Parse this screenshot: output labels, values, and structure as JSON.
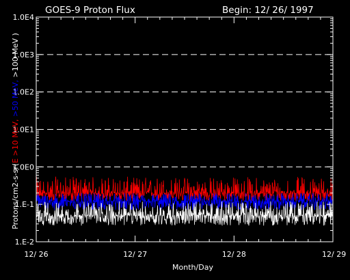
{
  "chart_data": {
    "type": "line",
    "title": "GOES-9 Proton Flux",
    "begin_label": "Begin: 12/ 26/ 1997",
    "xlabel": "Month/Day",
    "ylabel_parts": [
      {
        "text": "Protons/cm2-s-sr(",
        "color": "#ffffff"
      },
      {
        "text": "E >10 MeV, ",
        "color": "#ff0000"
      },
      {
        "text": ">50 MeV, ",
        "color": "#0000ff"
      },
      {
        "text": ">100 MeV )",
        "color": "#ffffff"
      }
    ],
    "y_scale": "log",
    "ylim": [
      0.01,
      10000
    ],
    "y_tick_labels": [
      "1.E-2",
      "1.E-1",
      "1.0E0",
      "1.0E1",
      "1.0E2",
      "1.0E3",
      "1.0E4"
    ],
    "y_tick_values": [
      0.01,
      0.1,
      1,
      10,
      100,
      1000,
      10000
    ],
    "dashed_grid_values": [
      1,
      10,
      100,
      1000
    ],
    "x_tick_labels": [
      "12/ 26",
      "12/ 27",
      "12/ 28",
      "12/ 29"
    ],
    "x_tick_days": [
      0,
      1,
      2,
      3
    ],
    "xlim_days": [
      0,
      3
    ],
    "series": [
      {
        "color": "#ff0000",
        "typical_value": 0.2,
        "range": [
          0.12,
          0.55
        ]
      },
      {
        "color": "#0000ff",
        "typical_value": 0.12,
        "range": [
          0.07,
          0.2
        ]
      },
      {
        "color": "#ffffff",
        "typical_value": 0.05,
        "range": [
          0.027,
          0.12
        ]
      }
    ],
    "colors": {
      "background": "#000000",
      "axes": "#ffffff"
    }
  }
}
